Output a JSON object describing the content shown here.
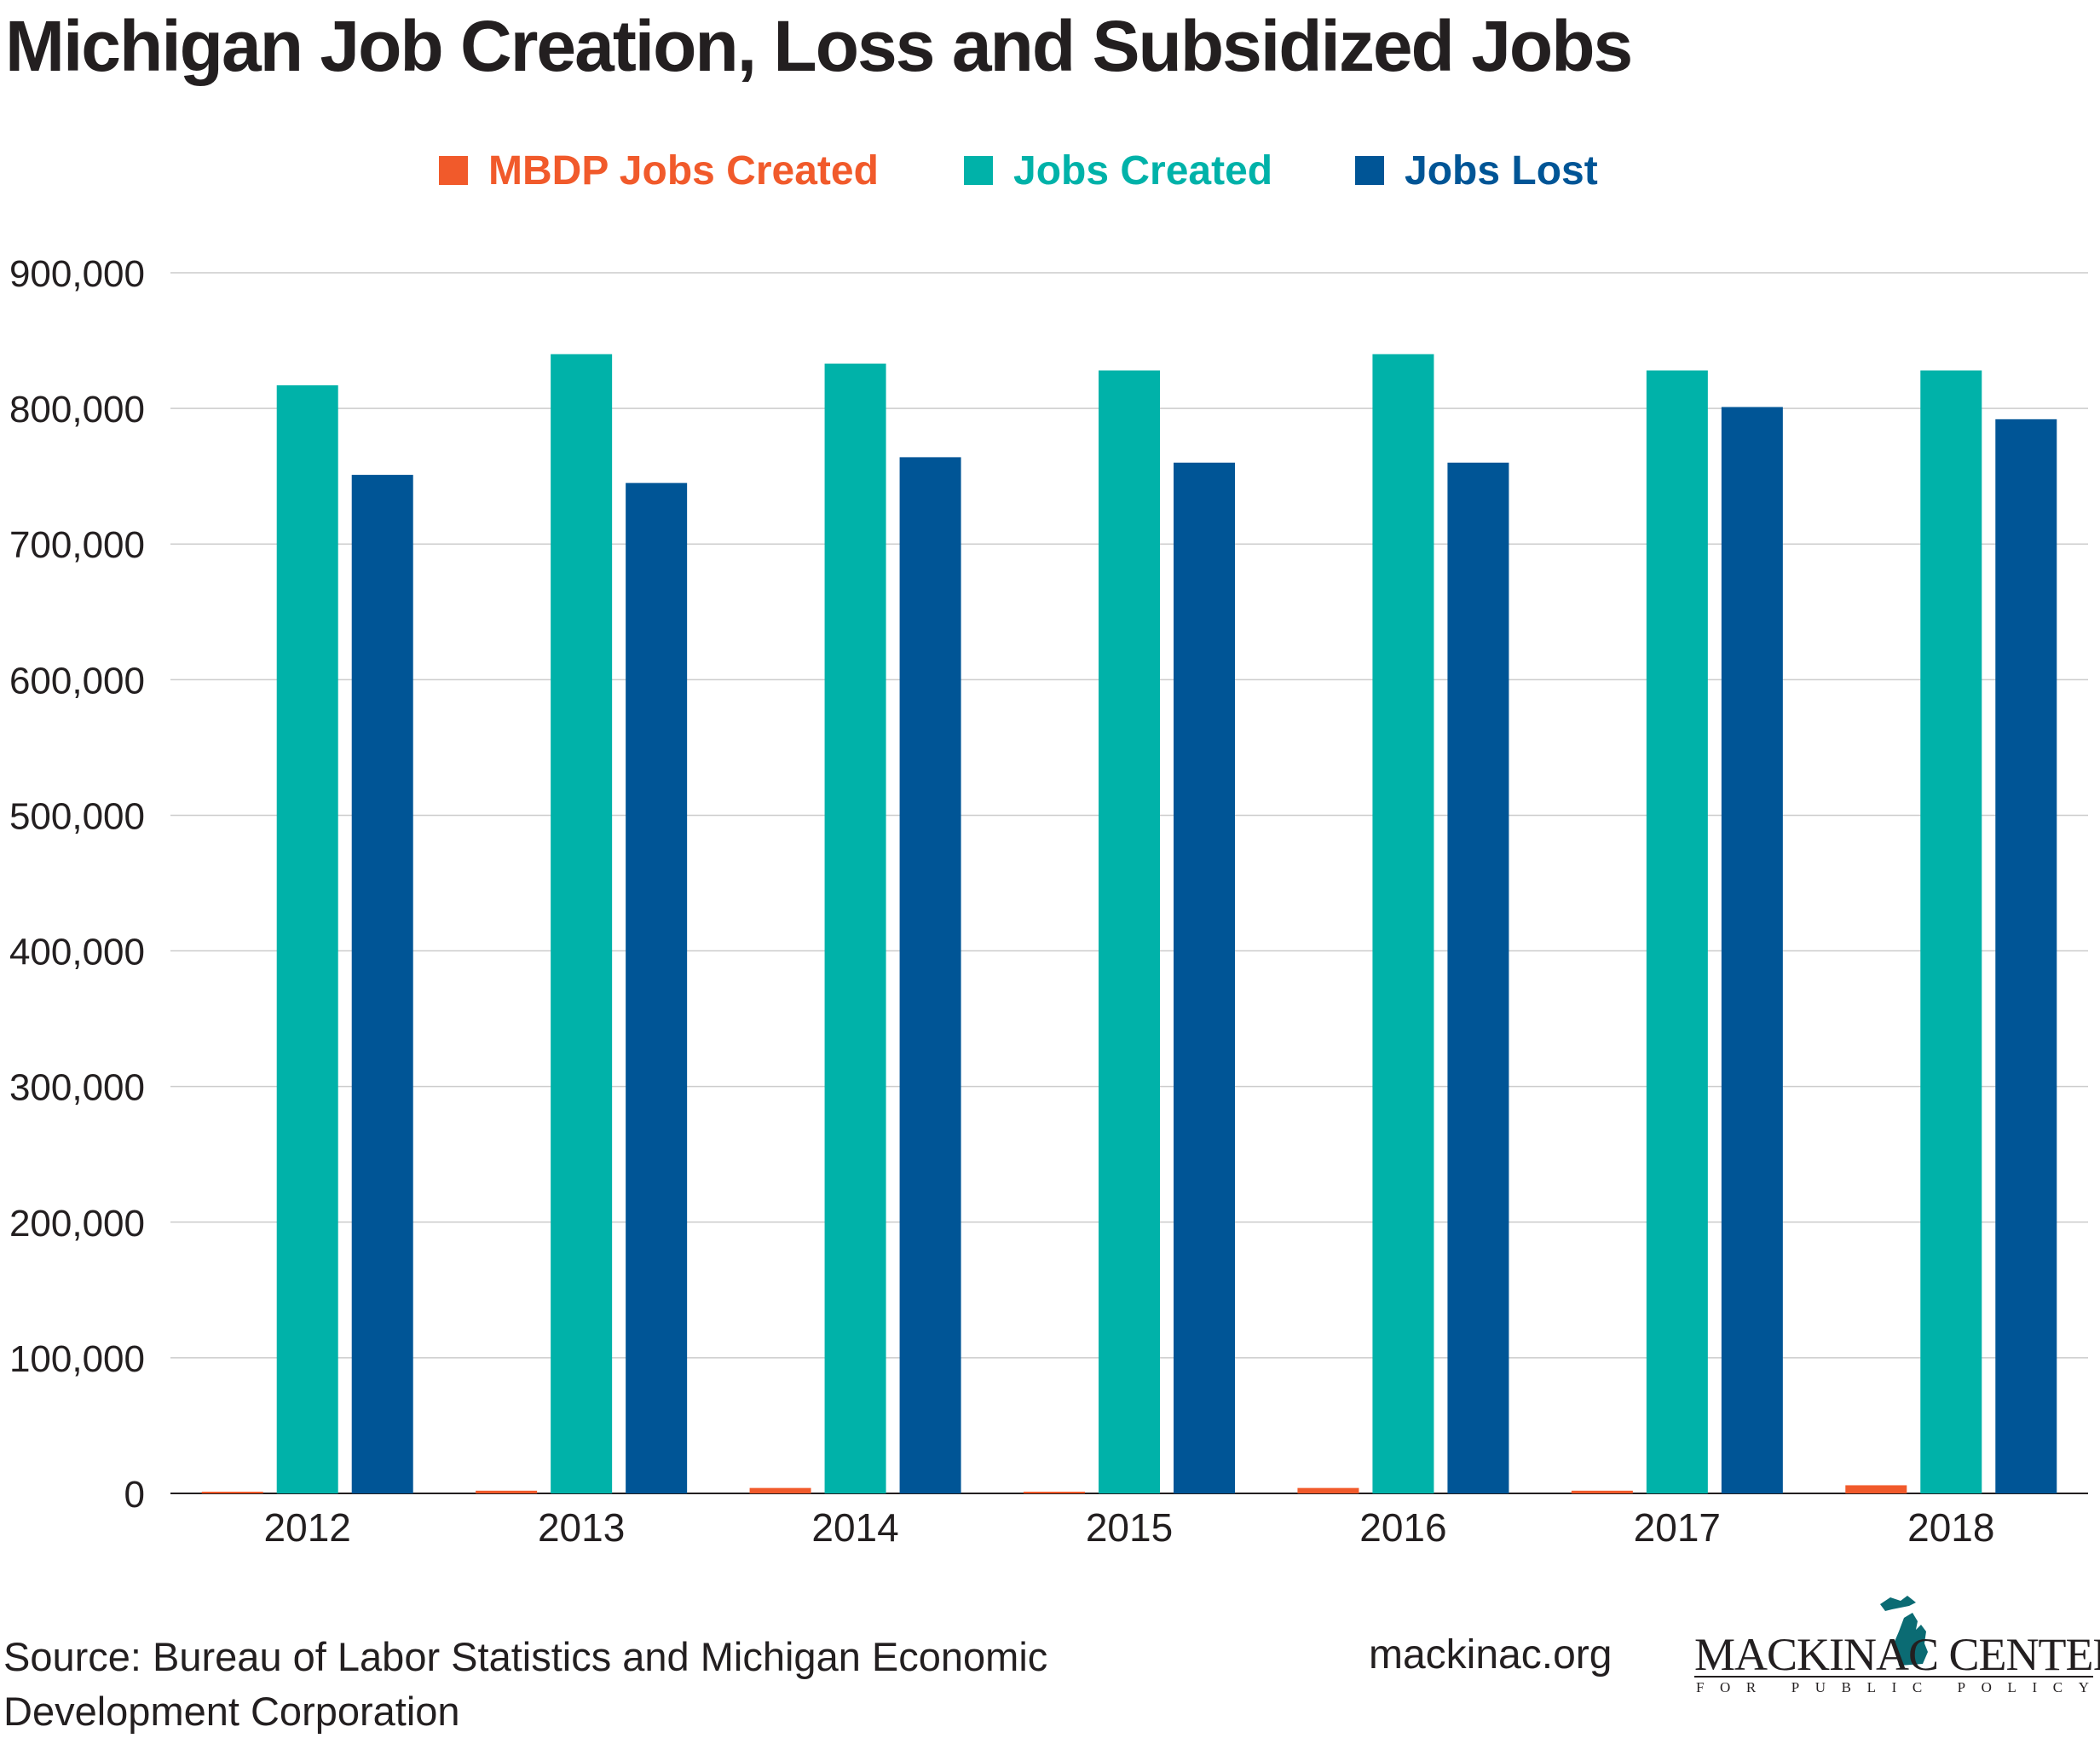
{
  "title": "Michigan Job Creation, Loss and Subsidized Jobs",
  "source": "Source: Bureau of Labor Statistics and Michigan Economic Development Corporation",
  "website": "mackinac.org",
  "logo": {
    "name": "MACKINAC CENTER",
    "subtitle": "FOR PUBLIC POLICY",
    "icon": "michigan-map-icon"
  },
  "colors": {
    "mbdp": "#f15a2b",
    "created": "#00b2a9",
    "lost": "#005596",
    "grid": "#cccccc",
    "axis": "#231f20"
  },
  "chart_data": {
    "type": "bar",
    "categories": [
      "2012",
      "2013",
      "2014",
      "2015",
      "2016",
      "2017",
      "2018"
    ],
    "series": [
      {
        "name": "MBDP Jobs Created",
        "color": "#f15a2b",
        "values": [
          1000,
          2000,
          4000,
          1000,
          4000,
          2000,
          6000
        ]
      },
      {
        "name": "Jobs Created",
        "color": "#00b2a9",
        "values": [
          817000,
          840000,
          833000,
          828000,
          840000,
          828000,
          828000
        ]
      },
      {
        "name": "Jobs Lost",
        "color": "#005596",
        "values": [
          751000,
          745000,
          764000,
          760000,
          760000,
          801000,
          792000
        ]
      }
    ],
    "ylim": [
      0,
      900000
    ],
    "yticks": [
      "0",
      "100,000",
      "200,000",
      "300,000",
      "400,000",
      "500,000",
      "600,000",
      "700,000",
      "800,000",
      "900,000"
    ],
    "ytick_values": [
      0,
      100000,
      200000,
      300000,
      400000,
      500000,
      600000,
      700000,
      800000,
      900000
    ],
    "grid": true,
    "legend_position": "top-center"
  }
}
